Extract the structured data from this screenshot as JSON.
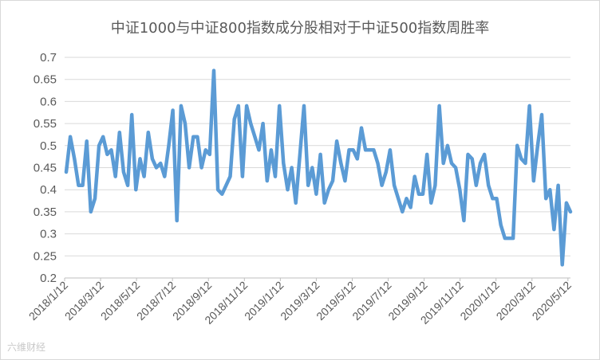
{
  "chart_data": {
    "type": "line",
    "title": "中证1000与中证800指数成分股相对于中证500指数周胜率",
    "xlabel": "",
    "ylabel": "",
    "ylim": [
      0.2,
      0.7
    ],
    "yticks": [
      "0.2",
      "0.25",
      "0.3",
      "0.35",
      "0.4",
      "0.45",
      "0.5",
      "0.55",
      "0.6",
      "0.65",
      "0.7"
    ],
    "xticks": [
      "2018/1/12",
      "2018/3/12",
      "2018/5/12",
      "2018/7/12",
      "2018/9/12",
      "2018/11/12",
      "2019/1/12",
      "2019/3/12",
      "2019/5/12",
      "2019/7/12",
      "2019/9/12",
      "2019/11/12",
      "2020/1/12",
      "2020/3/12",
      "2020/5/12"
    ],
    "grid": true,
    "legend": "none",
    "color": "#5b9bd5",
    "series": [
      {
        "values": [
          0.44,
          0.52,
          0.47,
          0.41,
          0.41,
          0.51,
          0.35,
          0.38,
          0.5,
          0.52,
          0.48,
          0.49,
          0.43,
          0.53,
          0.44,
          0.41,
          0.57,
          0.4,
          0.47,
          0.43,
          0.53,
          0.47,
          0.45,
          0.46,
          0.43,
          0.5,
          0.58,
          0.33,
          0.59,
          0.55,
          0.45,
          0.52,
          0.52,
          0.45,
          0.49,
          0.48,
          0.67,
          0.4,
          0.39,
          0.41,
          0.43,
          0.56,
          0.59,
          0.43,
          0.59,
          0.55,
          0.52,
          0.49,
          0.55,
          0.42,
          0.49,
          0.43,
          0.59,
          0.46,
          0.4,
          0.45,
          0.37,
          0.48,
          0.59,
          0.41,
          0.45,
          0.39,
          0.48,
          0.37,
          0.4,
          0.42,
          0.51,
          0.46,
          0.42,
          0.49,
          0.49,
          0.47,
          0.54,
          0.49,
          0.49,
          0.49,
          0.46,
          0.41,
          0.44,
          0.49,
          0.41,
          0.38,
          0.35,
          0.38,
          0.36,
          0.43,
          0.39,
          0.39,
          0.48,
          0.37,
          0.41,
          0.59,
          0.46,
          0.5,
          0.46,
          0.45,
          0.4,
          0.33,
          0.48,
          0.47,
          0.41,
          0.46,
          0.48,
          0.41,
          0.38,
          0.38,
          0.32,
          0.29,
          0.29,
          0.29,
          0.5,
          0.47,
          0.46,
          0.59,
          0.42,
          0.5,
          0.57,
          0.38,
          0.4,
          0.31,
          0.41,
          0.23,
          0.37,
          0.35
        ]
      }
    ]
  },
  "watermark": "六维财经"
}
